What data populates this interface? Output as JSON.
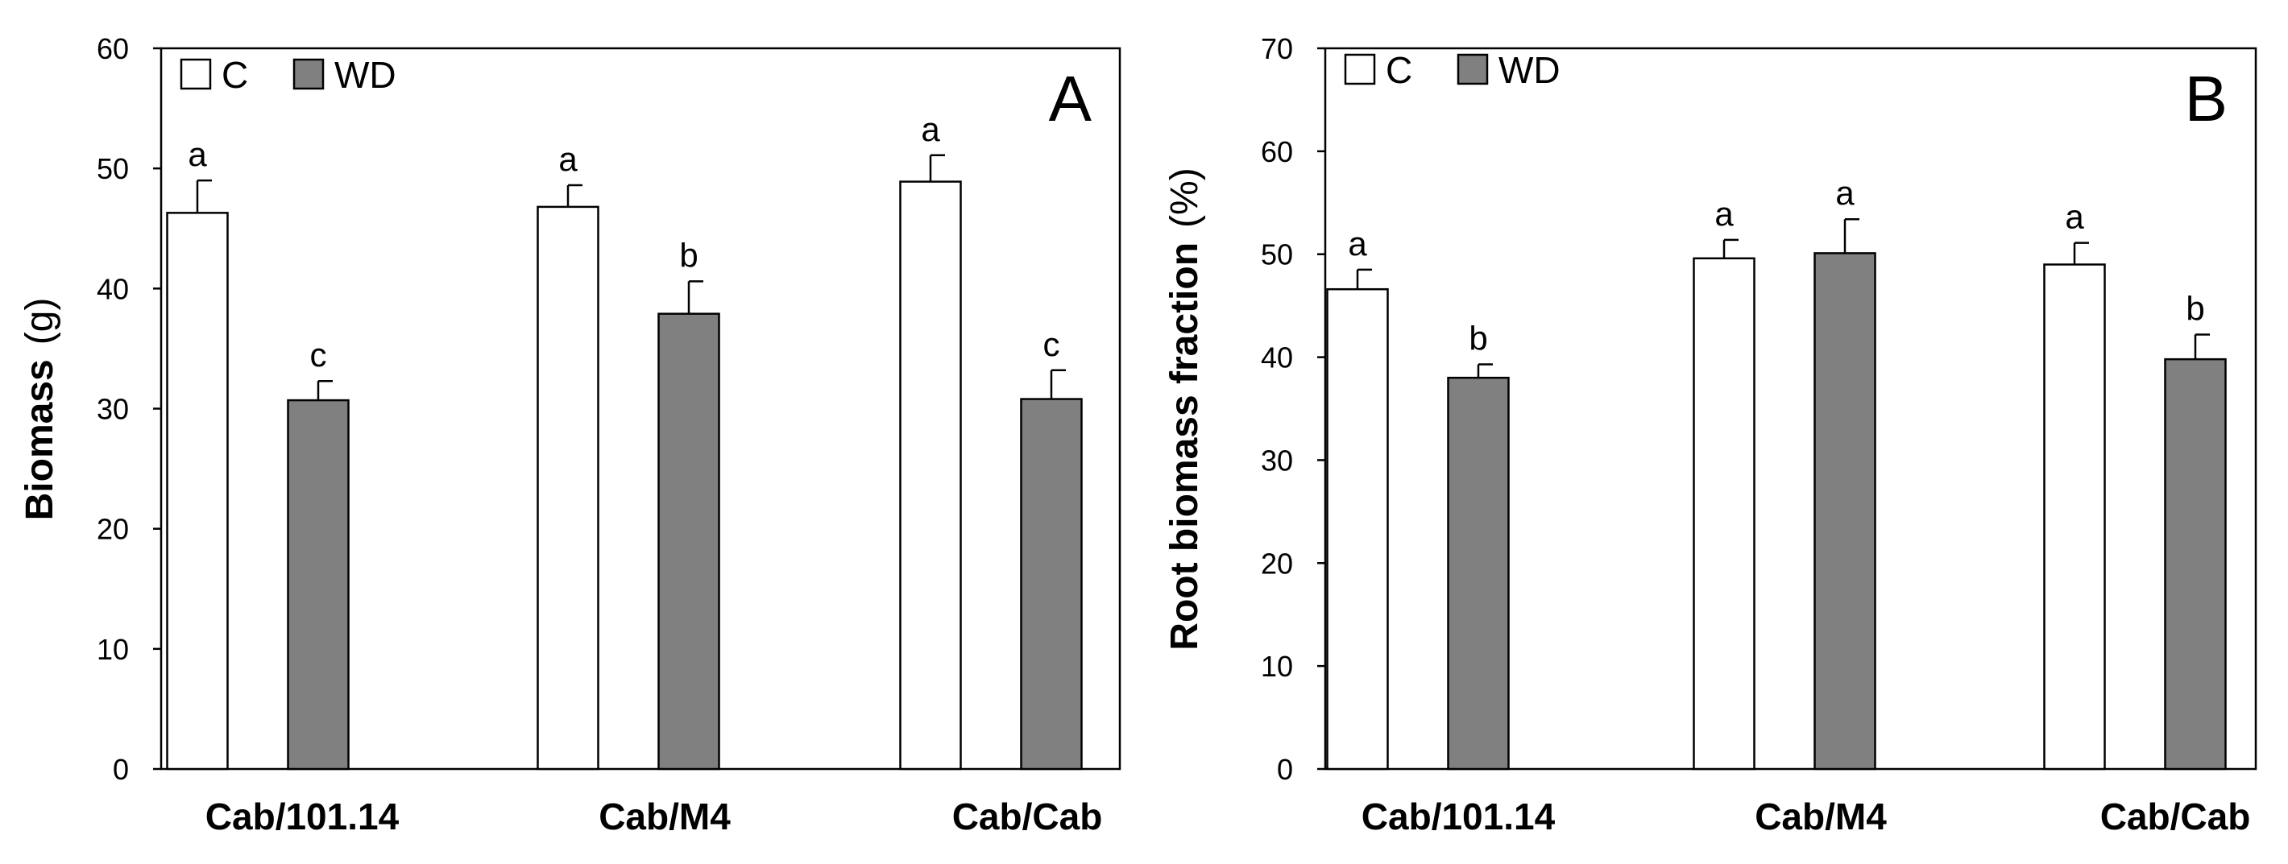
{
  "chart_data": [
    {
      "type": "bar",
      "panel": "A",
      "ylabel": "Biomass",
      "yunit": "(g)",
      "ylim": [
        0,
        60
      ],
      "yticks": [
        0,
        10,
        20,
        30,
        40,
        50,
        60
      ],
      "categories": [
        "Cab/101.14",
        "Cab/M4",
        "Cab/Cab"
      ],
      "legend_position": "top-left",
      "series": [
        {
          "name": "C",
          "color": "#ffffff",
          "values": [
            46.3,
            46.8,
            48.9
          ],
          "errors": [
            2.7,
            1.8,
            2.2
          ],
          "letters": [
            "a",
            "a",
            "a"
          ]
        },
        {
          "name": "WD",
          "color": "#808080",
          "values": [
            30.7,
            37.9,
            30.8
          ],
          "errors": [
            1.6,
            2.7,
            2.4
          ],
          "letters": [
            "c",
            "b",
            "c"
          ]
        }
      ]
    },
    {
      "type": "bar",
      "panel": "B",
      "ylabel": "Root biomass fraction",
      "yunit": "(%)",
      "ylim": [
        0,
        70
      ],
      "yticks": [
        0,
        10,
        20,
        30,
        40,
        50,
        60,
        70
      ],
      "categories": [
        "Cab/101.14",
        "Cab/M4",
        "Cab/Cab"
      ],
      "legend_position": "top-left",
      "series": [
        {
          "name": "C",
          "color": "#ffffff",
          "values": [
            46.6,
            49.6,
            49.0
          ],
          "errors": [
            1.9,
            1.8,
            2.1
          ],
          "letters": [
            "a",
            "a",
            "a"
          ]
        },
        {
          "name": "WD",
          "color": "#808080",
          "values": [
            38.0,
            50.1,
            39.8
          ],
          "errors": [
            1.3,
            3.3,
            2.4
          ],
          "letters": [
            "b",
            "a",
            "b"
          ]
        }
      ]
    }
  ]
}
